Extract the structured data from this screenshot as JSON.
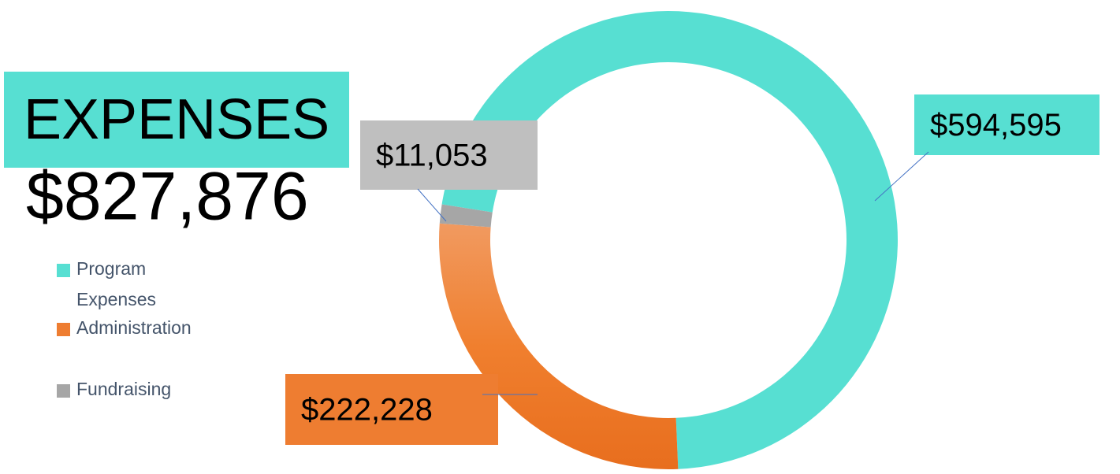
{
  "chart_data": {
    "type": "donut",
    "title": "EXPENSES",
    "subtitle": "$827,876",
    "categories": [
      "Program Expenses",
      "Administration",
      "Fundraising"
    ],
    "values": [
      594595,
      222228,
      11053
    ],
    "value_labels": [
      "$594,595",
      "$222,228",
      "$11,053"
    ],
    "colors": [
      "#57dfd2",
      "#ee7d31",
      "#a6a6a6"
    ],
    "legend": "left"
  }
}
